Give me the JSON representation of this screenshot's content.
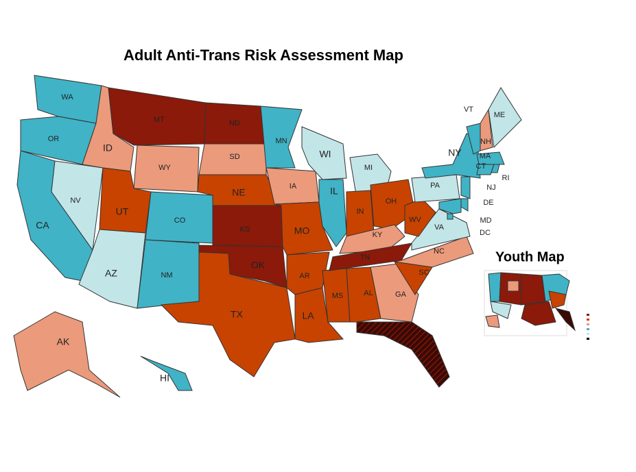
{
  "title": "Adult Anti-Trans Risk Assessment Map",
  "states": [
    {
      "label": "WA",
      "color": "#40b3c6"
    },
    {
      "label": "OR",
      "color": "#40b3c6"
    },
    {
      "label": "CA",
      "color": "#40b3c6"
    },
    {
      "label": "NV",
      "color": "#c2e5e8"
    },
    {
      "label": "ID",
      "color": "#eb9a7b"
    },
    {
      "label": "MT",
      "color": "#8b1a0a"
    },
    {
      "label": "WY",
      "color": "#eb9a7b"
    },
    {
      "label": "UT",
      "color": "#c84300"
    },
    {
      "label": "AZ",
      "color": "#c2e5e8"
    },
    {
      "label": "CO",
      "color": "#40b3c6"
    },
    {
      "label": "NM",
      "color": "#40b3c6"
    },
    {
      "label": "ND",
      "color": "#8b1a0a"
    },
    {
      "label": "SD",
      "color": "#eb9a7b"
    },
    {
      "label": "NE",
      "color": "#c84300"
    },
    {
      "label": "KS",
      "color": "#8b1a0a"
    },
    {
      "label": "OK",
      "color": "#8b1a0a"
    },
    {
      "label": "TX",
      "color": "#c84300"
    },
    {
      "label": "MN",
      "color": "#40b3c6"
    },
    {
      "label": "IA",
      "color": "#eb9a7b"
    },
    {
      "label": "MO",
      "color": "#c84300"
    },
    {
      "label": "AR",
      "color": "#c84300"
    },
    {
      "label": "LA",
      "color": "#c84300"
    },
    {
      "label": "MS",
      "color": "#c84300"
    },
    {
      "label": "AL",
      "color": "#c84300"
    },
    {
      "label": "WI",
      "color": "#c2e5e8"
    },
    {
      "label": "IL",
      "color": "#40b3c6"
    },
    {
      "label": "MI",
      "color": "#c2e5e8"
    },
    {
      "label": "IN",
      "color": "#c84300"
    },
    {
      "label": "OH",
      "color": "#c84300"
    },
    {
      "label": "KY",
      "color": "#eb9a7b"
    },
    {
      "label": "TN",
      "color": "#8b1a0a"
    },
    {
      "label": "GA",
      "color": "#eb9a7b"
    },
    {
      "label": null,
      "color": "#3a0a05"
    },
    {
      "label": "SC",
      "color": "#c84300"
    },
    {
      "label": "NC",
      "color": "#eb9a7b"
    },
    {
      "label": "VA",
      "color": "#c2e5e8"
    },
    {
      "label": "WV",
      "color": "#c84300"
    },
    {
      "label": "PA",
      "color": "#c2e5e8"
    },
    {
      "label": "NY",
      "color": "#40b3c6"
    },
    {
      "label": "VT",
      "color": "#40b3c6"
    },
    {
      "label": "NH",
      "color": "#eb9a7b"
    },
    {
      "label": "ME",
      "color": "#c2e5e8"
    },
    {
      "label": "MA",
      "color": "#40b3c6"
    },
    {
      "label": "CT",
      "color": "#40b3c6"
    },
    {
      "label": "RI",
      "color": "#40b3c6"
    },
    {
      "label": "NJ",
      "color": "#40b3c6"
    },
    {
      "label": "DE",
      "color": "#40b3c6"
    },
    {
      "label": "MD",
      "color": "#40b3c6"
    },
    {
      "label": "DC",
      "color": "#40b3c6"
    },
    {
      "label": "AK",
      "color": "#eb9a7b"
    },
    {
      "label": "HI",
      "color": "#40b3c6"
    }
  ],
  "youth_map": {
    "title": "Youth Map"
  }
}
